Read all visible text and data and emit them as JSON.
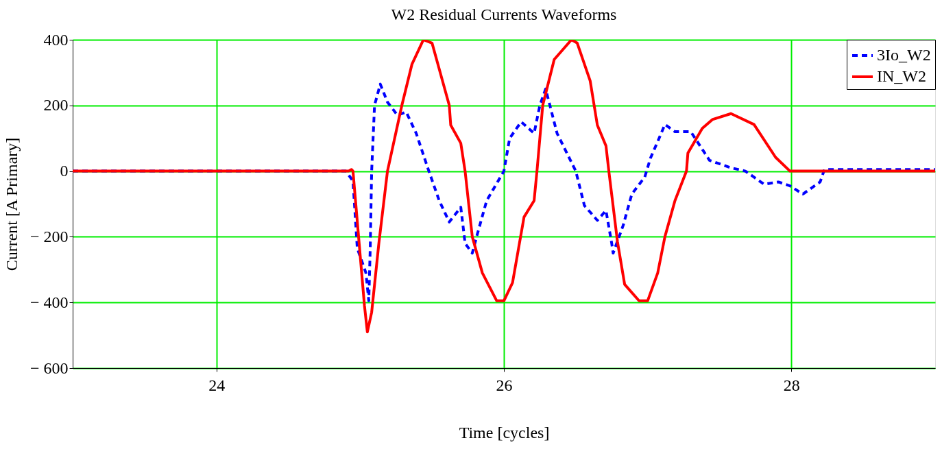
{
  "chart_data": {
    "type": "line",
    "title": "W2 Residual Currents Waveforms",
    "xlabel": "Time [cycles]",
    "ylabel": "Current [A Primary]",
    "xlim": [
      23,
      29
    ],
    "xticks": [
      24,
      26,
      28
    ],
    "ylim": [
      -600,
      400
    ],
    "yticks": [
      {
        "value": -600,
        "label": "− 600"
      },
      {
        "value": -400,
        "label": "− 400"
      },
      {
        "value": -200,
        "label": "− 200"
      },
      0,
      200,
      400
    ],
    "grid": true,
    "legend": "top right",
    "series": [
      {
        "name": "3Io_W2",
        "color": "#0000ff",
        "line_style": "dashed",
        "x": [
          23,
          24.9,
          24.95,
          24.98,
          25.04,
          25.06,
          25.07,
          25.08,
          25.1,
          25.14,
          25.19,
          25.26,
          25.32,
          25.39,
          25.47,
          25.55,
          25.62,
          25.7,
          25.73,
          25.78,
          25.81,
          25.88,
          26.0,
          26.04,
          26.12,
          26.21,
          26.25,
          26.29,
          26.32,
          26.37,
          26.5,
          26.56,
          26.65,
          26.71,
          26.75,
          26.76,
          26.83,
          26.89,
          26.98,
          27.02,
          27.07,
          27.12,
          27.19,
          27.3,
          27.43,
          27.58,
          27.68,
          27.81,
          27.91,
          27.99,
          28.08,
          28.2,
          28.23,
          29
        ],
        "values": [
          0,
          0,
          -30,
          -235,
          -310,
          -395,
          -235,
          0,
          200,
          265,
          210,
          170,
          180,
          115,
          10,
          -90,
          -155,
          -110,
          -220,
          -250,
          -200,
          -90,
          0,
          100,
          150,
          115,
          200,
          250,
          200,
          115,
          0,
          -105,
          -150,
          -120,
          -220,
          -250,
          -165,
          -70,
          -18,
          40,
          90,
          142,
          120,
          120,
          33,
          10,
          0,
          -40,
          -33,
          -45,
          -70,
          -33,
          5,
          5
        ]
      },
      {
        "name": "IN_W2",
        "color": "#ff0000",
        "line_style": "solid",
        "x": [
          23,
          24.92,
          24.94,
          24.95,
          25.03,
          25.05,
          25.08,
          25.13,
          25.19,
          25.29,
          25.36,
          25.44,
          25.5,
          25.62,
          25.63,
          25.7,
          25.73,
          25.78,
          25.85,
          25.95,
          26.0,
          26.06,
          26.14,
          26.21,
          26.23,
          26.27,
          26.35,
          26.47,
          26.51,
          26.6,
          26.65,
          26.71,
          26.73,
          26.79,
          26.84,
          26.94,
          27.0,
          27.07,
          27.12,
          27.19,
          27.27,
          27.28,
          27.38,
          27.45,
          27.58,
          27.74,
          27.89,
          27.99,
          29
        ],
        "values": [
          0,
          0,
          5,
          0,
          -410,
          -490,
          -430,
          -220,
          0,
          200,
          325,
          400,
          390,
          200,
          140,
          85,
          0,
          -200,
          -310,
          -395,
          -395,
          -340,
          -140,
          -90,
          0,
          200,
          340,
          400,
          390,
          275,
          140,
          77,
          0,
          -215,
          -345,
          -395,
          -395,
          -310,
          -200,
          -90,
          0,
          55,
          130,
          157,
          175,
          142,
          42,
          0,
          0
        ]
      }
    ]
  }
}
